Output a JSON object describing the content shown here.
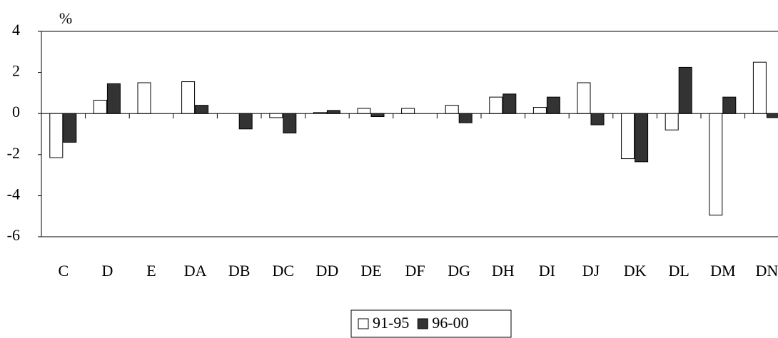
{
  "chart_data": {
    "type": "bar",
    "y_label": "%",
    "categories": [
      "C",
      "D",
      "E",
      "DA",
      "DB",
      "DC",
      "DD",
      "DE",
      "DF",
      "DG",
      "DH",
      "DI",
      "DJ",
      "DK",
      "DL",
      "DM",
      "DN"
    ],
    "series": [
      {
        "name": "91-95",
        "color": "#ffffff",
        "values": [
          -2.15,
          0.65,
          1.5,
          1.55,
          null,
          -0.2,
          0.05,
          0.25,
          0.25,
          0.4,
          0.8,
          0.3,
          1.5,
          -2.2,
          -0.8,
          -4.95,
          2.5
        ]
      },
      {
        "name": "96-00",
        "color": "#333333",
        "values": [
          -1.4,
          1.45,
          null,
          0.4,
          -0.75,
          -0.95,
          0.15,
          -0.15,
          null,
          -0.45,
          0.95,
          0.8,
          -0.55,
          -2.35,
          2.25,
          0.8,
          -0.2
        ]
      }
    ],
    "ylim": [
      -6,
      4
    ],
    "yticks": [
      -6,
      -4,
      -2,
      0,
      2,
      4
    ],
    "grid": false,
    "legend": "bottom"
  }
}
